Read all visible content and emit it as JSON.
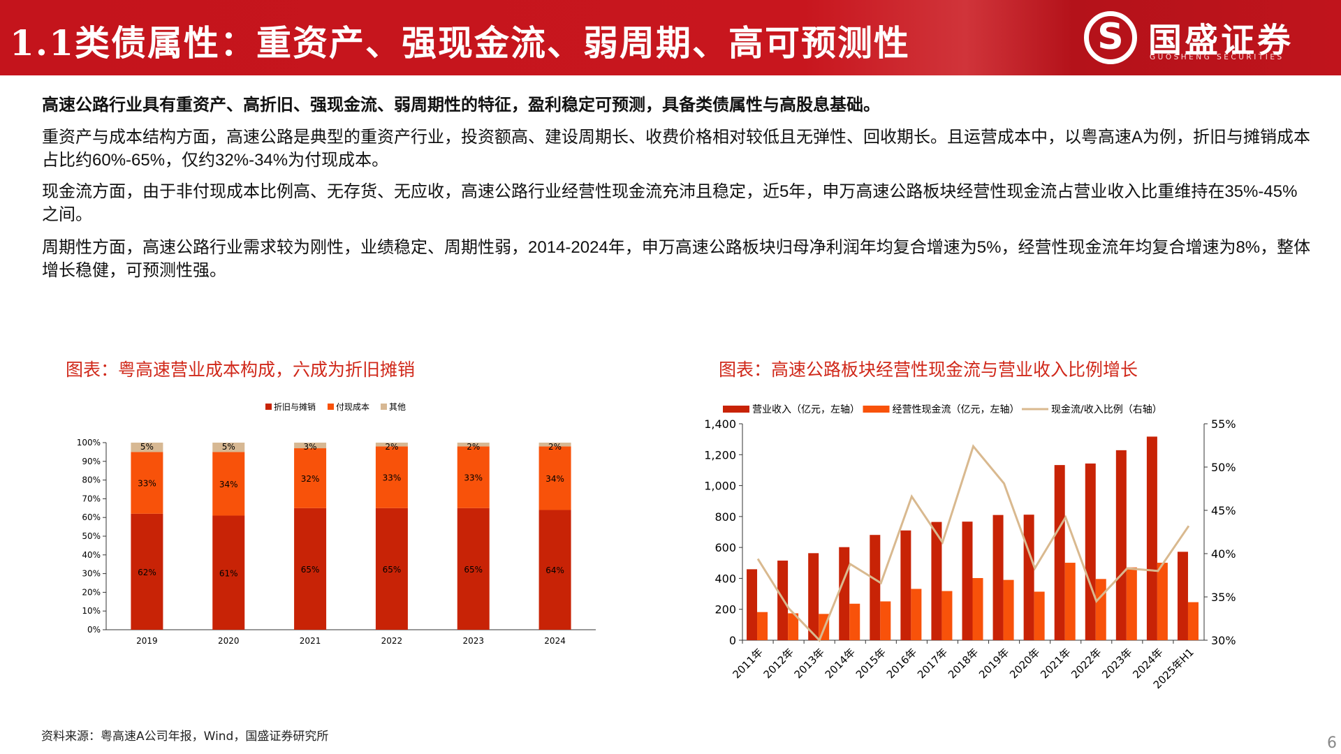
{
  "header": {
    "title": "1.1类债属性：重资产、强现金流、弱周期、高可预测性",
    "logo_cn": "国盛证券",
    "logo_en": "GUOSHENG SECURITIES"
  },
  "body": {
    "lead": "高速公路行业具有重资产、高折旧、强现金流、弱周期性的特征，盈利稳定可预测，具备类债属性与高股息基础。",
    "p1": "重资产与成本结构方面，高速公路是典型的重资产行业，投资额高、建设周期长、收费价格相对较低且无弹性、回收期长。且运营成本中，以粤高速A为例，折旧与摊销成本占比约60%-65%，仅约32%-34%为付现成本。",
    "p2": "现金流方面，由于非付现成本比例高、无存货、无应收，高速公路行业经营性现金流充沛且稳定，近5年，申万高速公路板块经营性现金流占营业收入比重维持在35%-45%之间。",
    "p3": "周期性方面，高速公路行业需求较为刚性，业绩稳定、周期性弱，2014-2024年，申万高速公路板块归母净利润年均复合增速为5%，经营性现金流年均复合增速为8%，整体增长稳健，可预测性强。"
  },
  "footer": {
    "source": "资料来源：粤高速A公司年报，Wind，国盛证券研究所",
    "page": "6"
  },
  "chart_data": [
    {
      "type": "bar",
      "stacked": true,
      "title": "图表：粤高速营业成本构成，六成为折旧摊销",
      "categories": [
        "2019",
        "2020",
        "2021",
        "2022",
        "2023",
        "2024"
      ],
      "ylim": [
        0,
        100
      ],
      "yticks": [
        "0%",
        "10%",
        "20%",
        "30%",
        "40%",
        "50%",
        "60%",
        "70%",
        "80%",
        "90%",
        "100%"
      ],
      "legend": "top",
      "series": [
        {
          "name": "折旧与摊销",
          "color": "#c82306",
          "values": [
            62,
            61,
            65,
            65,
            65,
            64
          ]
        },
        {
          "name": "付现成本",
          "color": "#f8520a",
          "values": [
            33,
            34,
            32,
            33,
            33,
            34
          ]
        },
        {
          "name": "其他",
          "color": "#d7b893",
          "values": [
            5,
            5,
            3,
            2,
            2,
            2
          ]
        }
      ]
    },
    {
      "type": "bar+line",
      "title": "图表：高速公路板块经营性现金流与营业收入比例增长",
      "categories": [
        "2011年",
        "2012年",
        "2013年",
        "2014年",
        "2015年",
        "2016年",
        "2017年",
        "2018年",
        "2019年",
        "2020年",
        "2021年",
        "2022年",
        "2023年",
        "2024年",
        "2025年H1"
      ],
      "ylim": [
        0,
        1400
      ],
      "yticks": [
        "0",
        "200",
        "400",
        "600",
        "800",
        "1,000",
        "1,200",
        "1,400"
      ],
      "y2lim": [
        30,
        55
      ],
      "y2ticks": [
        "30%",
        "35%",
        "40%",
        "45%",
        "50%",
        "55%"
      ],
      "legend": "top",
      "series": [
        {
          "name": "营业收入（亿元，左轴）",
          "type": "bar",
          "color": "#c82306",
          "values": [
            459,
            515,
            563,
            602,
            681,
            710,
            765,
            767,
            810,
            812,
            1133,
            1143,
            1229,
            1317,
            572
          ]
        },
        {
          "name": "经营性现金流（亿元，左轴）",
          "type": "bar",
          "color": "#f8520a",
          "values": [
            182,
            174,
            170,
            236,
            251,
            332,
            318,
            402,
            390,
            314,
            501,
            396,
            471,
            501,
            246
          ]
        },
        {
          "name": "现金流/收入比例（右轴）",
          "type": "line",
          "axis": "right",
          "color": "#d9b98f",
          "values": [
            39.4,
            33.7,
            30.0,
            38.8,
            36.6,
            46.6,
            41.3,
            52.4,
            48.1,
            38.3,
            44.2,
            34.5,
            38.3,
            38.0,
            43.2
          ]
        }
      ]
    }
  ]
}
